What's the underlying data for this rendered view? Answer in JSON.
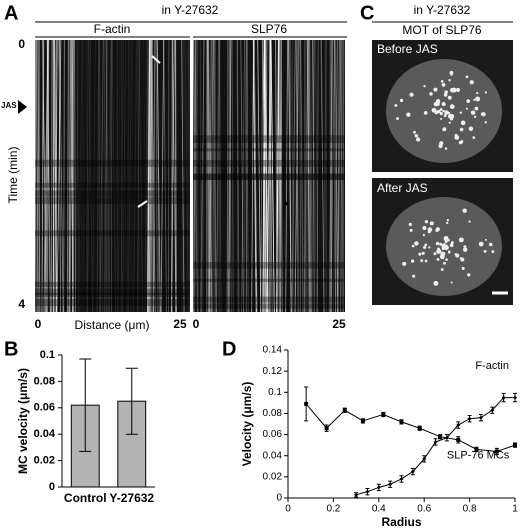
{
  "panels": {
    "A": {
      "label": "A",
      "title": "in Y-27632",
      "kymographs": [
        "F-actin",
        "SLP76"
      ],
      "y_axis_label": "Time (min)",
      "time_ticks": [
        "0",
        "4"
      ],
      "jas_label": "JAS",
      "x_ticks": [
        "0",
        "25"
      ],
      "x_axis_label": "Distance (μm)",
      "asterisk": "*"
    },
    "C": {
      "label": "C",
      "title": "in Y-27632",
      "subtitle": "MOT of SLP76",
      "images": [
        "Before JAS",
        "After JAS"
      ]
    }
  },
  "chart_data": [
    {
      "type": "bar",
      "panel": "B",
      "ylabel": "MC velocity (μm/s)",
      "categories": [
        "Control",
        "Y-27632"
      ],
      "values": [
        0.062,
        0.065
      ],
      "errors": [
        0.035,
        0.025
      ],
      "color": "#b3b3b3",
      "ylim": [
        0,
        0.1
      ],
      "yticks": [
        0,
        0.02,
        0.04,
        0.06,
        0.08,
        0.1
      ]
    },
    {
      "type": "line",
      "panel": "D",
      "xlabel": "Radius",
      "ylabel": "Velocity (μm/s)",
      "xlim": [
        0,
        1
      ],
      "xticks": [
        0,
        0.2,
        0.4,
        0.6,
        0.8,
        1
      ],
      "ylim": [
        0,
        0.14
      ],
      "yticks": [
        0,
        0.02,
        0.04,
        0.06,
        0.08,
        0.1,
        0.12,
        0.14
      ],
      "series": [
        {
          "name": "F-actin",
          "color": "#000000",
          "marker": "diamond",
          "x": [
            0.3,
            0.35,
            0.4,
            0.45,
            0.5,
            0.55,
            0.6,
            0.65,
            0.7,
            0.75,
            0.8,
            0.85,
            0.9,
            0.95,
            1.0
          ],
          "values": [
            0.003,
            0.006,
            0.01,
            0.013,
            0.018,
            0.025,
            0.037,
            0.053,
            0.057,
            0.069,
            0.075,
            0.076,
            0.083,
            0.095,
            0.095
          ],
          "errors": [
            0.002,
            0.003,
            0.003,
            0.003,
            0.003,
            0.003,
            0.003,
            0.003,
            0.003,
            0.003,
            0.003,
            0.003,
            0.003,
            0.004,
            0.004
          ]
        },
        {
          "name": "SLP-76 MCs",
          "color": "#000000",
          "marker": "square",
          "x": [
            0.08,
            0.17,
            0.25,
            0.33,
            0.42,
            0.5,
            0.58,
            0.67,
            0.75,
            0.83,
            0.92,
            1.0
          ],
          "values": [
            0.089,
            0.066,
            0.083,
            0.073,
            0.079,
            0.072,
            0.066,
            0.058,
            0.055,
            0.046,
            0.044,
            0.05
          ],
          "errors": [
            0.016,
            0.003,
            0.002,
            0.002,
            0.002,
            0.002,
            0.002,
            0.002,
            0.003,
            0.002,
            0.003,
            0.002
          ]
        }
      ]
    }
  ]
}
